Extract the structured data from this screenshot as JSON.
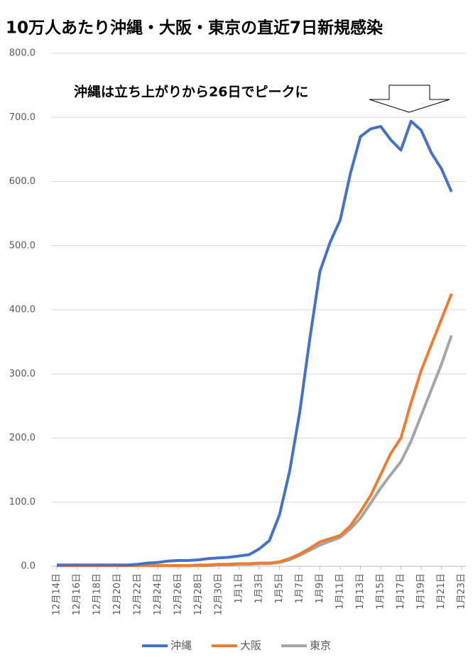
{
  "chart_data": {
    "type": "line",
    "title": "10万人あたり沖縄・大阪・東京の直近7日新規感染",
    "annotation": "沖縄は立ち上がりから26日でピークに",
    "categories": [
      "12月14日",
      null,
      "12月16日",
      null,
      "12月18日",
      null,
      "12月20日",
      null,
      "12月22日",
      null,
      "12月24日",
      null,
      "12月26日",
      null,
      "12月28日",
      null,
      "12月30日",
      null,
      "1月1日",
      null,
      "1月3日",
      null,
      "1月5日",
      null,
      "1月7日",
      null,
      "1月9日",
      null,
      "1月11日",
      null,
      "1月13日",
      null,
      "1月15日",
      null,
      "1月17日",
      null,
      "1月19日",
      null,
      "1月21日",
      null,
      "1月23日"
    ],
    "series": [
      {
        "name": "沖縄",
        "color": "#4472c4",
        "values": [
          2,
          2,
          2,
          2,
          2,
          2,
          2,
          2,
          3,
          5,
          6,
          8,
          9,
          9,
          10,
          12,
          13,
          14,
          16,
          18,
          27,
          40,
          80,
          148,
          240,
          355,
          460,
          505,
          540,
          612,
          670,
          682,
          686,
          665,
          649,
          694,
          680,
          645,
          620,
          584,
          null
        ]
      },
      {
        "name": "大阪",
        "color": "#ed7d31",
        "values": [
          1,
          1,
          1,
          1,
          1,
          1,
          1,
          1,
          1,
          1,
          1,
          1,
          1,
          1,
          2,
          2,
          3,
          3,
          4,
          4,
          5,
          5,
          7,
          12,
          19,
          28,
          38,
          43,
          48,
          63,
          85,
          110,
          143,
          176,
          200,
          255,
          305,
          345,
          385,
          425,
          null
        ]
      },
      {
        "name": "東京",
        "color": "#a5a5a5",
        "values": [
          1,
          1,
          1,
          1,
          1,
          1,
          1,
          1,
          1,
          1,
          1,
          1,
          1,
          1,
          1,
          1,
          2,
          2,
          3,
          3,
          4,
          4,
          6,
          10,
          17,
          25,
          33,
          39,
          45,
          58,
          75,
          98,
          122,
          143,
          163,
          195,
          235,
          275,
          315,
          360,
          null
        ]
      }
    ],
    "ylim": [
      0,
      800
    ],
    "yticks": [
      {
        "value": 0,
        "label": "0.0"
      },
      {
        "value": 100,
        "label": "100.0"
      },
      {
        "value": 200,
        "label": "200.0"
      },
      {
        "value": 300,
        "label": "300.0"
      },
      {
        "value": 400,
        "label": "400.0"
      },
      {
        "value": 500,
        "label": "500.0"
      },
      {
        "value": 600,
        "label": "600.0"
      },
      {
        "value": 700,
        "label": "700.0"
      },
      {
        "value": 800,
        "label": "800.0"
      }
    ],
    "grid": true,
    "legend": "bottom"
  }
}
